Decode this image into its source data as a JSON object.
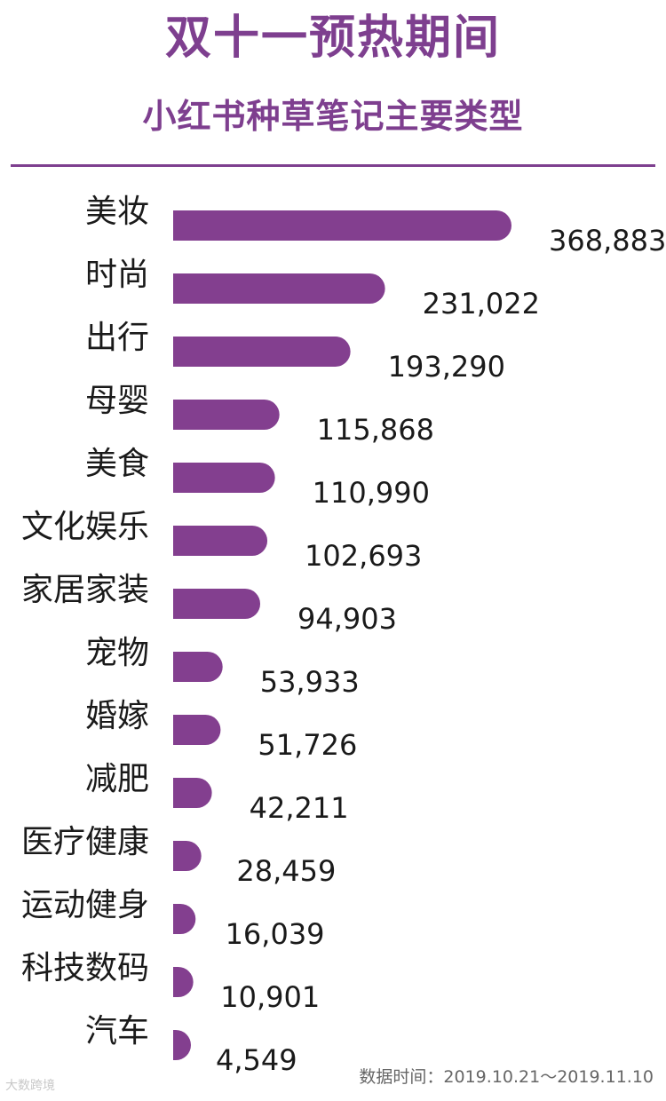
{
  "header": {
    "title": "双十一预热期间",
    "subtitle": "小红书种草笔记主要类型"
  },
  "footer": {
    "source_note": "数据时间：2019.10.21～2019.11.10",
    "watermark": "大数跨境"
  },
  "colors": {
    "accent": "#7e3f8f",
    "bar": "#833f8f",
    "text": "#1a1a1a"
  },
  "chart_data": {
    "type": "bar",
    "orientation": "horizontal",
    "title": "双十一预热期间",
    "subtitle": "小红书种草笔记主要类型",
    "categories": [
      "美妆",
      "时尚",
      "出行",
      "母婴",
      "美食",
      "文化娱乐",
      "家居家装",
      "宠物",
      "婚嫁",
      "减肥",
      "医疗健康",
      "运动健身",
      "科技数码",
      "汽车"
    ],
    "values": [
      368883,
      231022,
      193290,
      115868,
      110990,
      102693,
      94903,
      53933,
      51726,
      42211,
      28459,
      16039,
      10901,
      4549
    ],
    "value_labels": [
      "368,883",
      "231,022",
      "193,290",
      "115,868",
      "110,990",
      "102,693",
      "94,903",
      "53,933",
      "51,726",
      "42,211",
      "28,459",
      "16,039",
      "10,901",
      "4,549"
    ],
    "grid": false,
    "legend": "none"
  }
}
